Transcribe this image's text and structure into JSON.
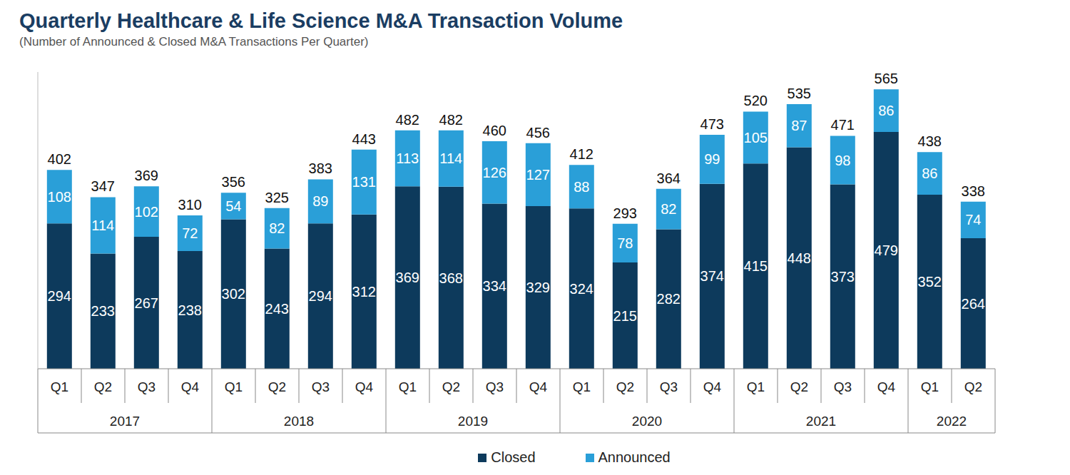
{
  "chart_data": {
    "type": "bar",
    "title": "Quarterly Healthcare & Life Science M&A Transaction Volume",
    "subtitle": "(Number of Announced & Closed M&A Transactions Per Quarter)",
    "categories": [
      "Q1",
      "Q2",
      "Q3",
      "Q4",
      "Q1",
      "Q2",
      "Q3",
      "Q4",
      "Q1",
      "Q2",
      "Q3",
      "Q4",
      "Q1",
      "Q2",
      "Q3",
      "Q4",
      "Q1",
      "Q2",
      "Q3",
      "Q4",
      "Q1",
      "Q2"
    ],
    "years": [
      "2017",
      "2017",
      "2017",
      "2017",
      "2018",
      "2018",
      "2018",
      "2018",
      "2019",
      "2019",
      "2019",
      "2019",
      "2020",
      "2020",
      "2020",
      "2020",
      "2021",
      "2021",
      "2021",
      "2021",
      "2022",
      "2022"
    ],
    "series": [
      {
        "name": "Closed",
        "color": "#0d3a5c",
        "values": [
          294,
          233,
          267,
          238,
          302,
          243,
          294,
          312,
          369,
          368,
          334,
          329,
          324,
          215,
          282,
          374,
          415,
          448,
          373,
          479,
          352,
          264
        ]
      },
      {
        "name": "Announced",
        "color": "#2a9fd8",
        "values": [
          108,
          114,
          102,
          72,
          54,
          82,
          89,
          131,
          113,
          114,
          126,
          127,
          88,
          78,
          82,
          99,
          105,
          87,
          98,
          86,
          86,
          74
        ]
      }
    ],
    "totals": [
      402,
      347,
      369,
      310,
      356,
      325,
      383,
      443,
      482,
      482,
      460,
      456,
      412,
      293,
      364,
      473,
      520,
      535,
      471,
      565,
      438,
      338
    ],
    "ylim": [
      0,
      600
    ],
    "yticks": [],
    "stacked": true,
    "data_labels": true,
    "tick_labels": "x",
    "grid": false,
    "legend": "bottom"
  }
}
